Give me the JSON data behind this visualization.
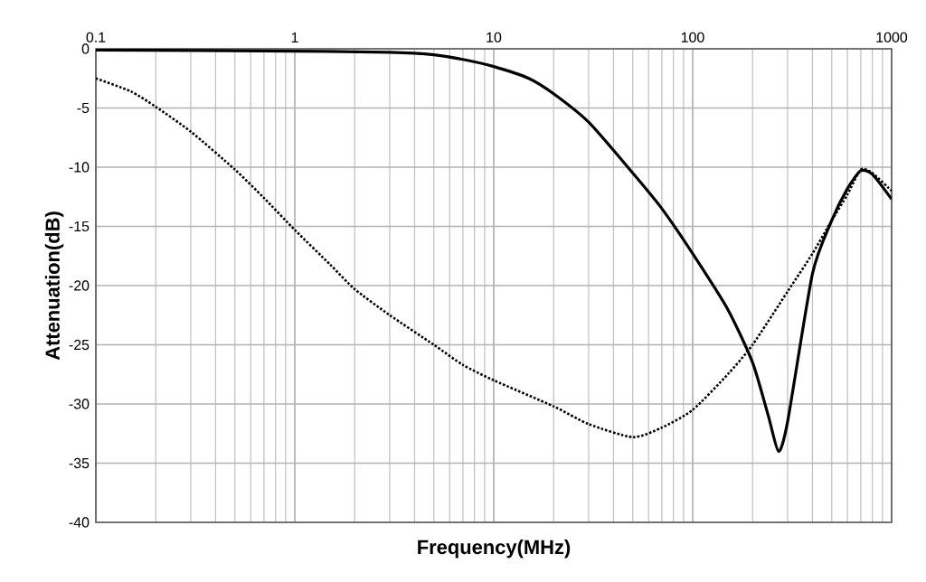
{
  "chart_data": {
    "type": "line",
    "xlabel": "Frequency(MHz)",
    "ylabel": "Attenuation(dB)",
    "log": "x",
    "grid": true,
    "xlim": [
      0.1,
      1000
    ],
    "xticks": [
      0.1,
      1,
      10,
      100,
      1000
    ],
    "ylim": [
      -40,
      0
    ],
    "yticks": [
      0,
      -5,
      -10,
      -15,
      -20,
      -25,
      -30,
      -35,
      -40
    ],
    "series": [
      {
        "color": "#000000",
        "line_style": "solid",
        "x": [
          0.1,
          1,
          3,
          5,
          7,
          10,
          15,
          20,
          30,
          50,
          70,
          100,
          150,
          200,
          240,
          270,
          300,
          400,
          500,
          600,
          700,
          800,
          1000
        ],
        "values": [
          -0.1,
          -0.2,
          -0.3,
          -0.5,
          -0.9,
          -1.5,
          -2.5,
          -3.8,
          -6.2,
          -10.5,
          -13.5,
          -17.3,
          -22,
          -26.5,
          -31,
          -34,
          -31.5,
          -19,
          -14.5,
          -11.8,
          -10.3,
          -10.6,
          -12.7
        ]
      },
      {
        "color": "#000000",
        "line_style": "dotted",
        "x": [
          0.1,
          0.15,
          0.2,
          0.3,
          0.5,
          0.7,
          1,
          1.5,
          2,
          3,
          5,
          7,
          10,
          20,
          30,
          50,
          70,
          100,
          150,
          200,
          300,
          400,
          500,
          600,
          700,
          800,
          1000
        ],
        "values": [
          -2.5,
          -3.6,
          -4.9,
          -7,
          -10.2,
          -12.6,
          -15.3,
          -18.2,
          -20.3,
          -22.5,
          -25,
          -26.7,
          -28,
          -30.2,
          -31.7,
          -32.8,
          -32,
          -30.5,
          -27.5,
          -25,
          -20.5,
          -17.3,
          -14.5,
          -12.3,
          -10.2,
          -10.5,
          -12
        ]
      }
    ]
  }
}
